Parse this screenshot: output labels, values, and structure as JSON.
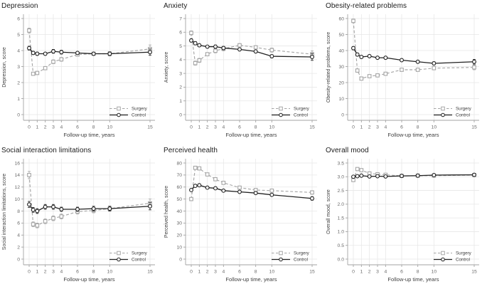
{
  "page": {
    "background": "#ffffff"
  },
  "colors": {
    "surgery": "#a6a6a6",
    "control": "#212121",
    "grid": "#e7e7e7",
    "axis": "#a3a3a3",
    "tick_text": "#6b6b6b",
    "axis_label_text": "#3f3f3f",
    "legend_text": "#3d3d3d",
    "title_text": "#1b1b1b",
    "marker_fill": "#ffffff"
  },
  "legend": {
    "items": [
      {
        "label": "Surgery"
      },
      {
        "label": "Control"
      }
    ]
  },
  "chart_data": [
    {
      "type": "line",
      "title": "Depression",
      "ylabel": "Depression, score",
      "xlabel": "Follow-up time, years",
      "x": [
        0,
        0.5,
        1,
        2,
        3,
        4,
        6,
        8,
        10,
        15
      ],
      "xticks": [
        0,
        1,
        2,
        3,
        4,
        6,
        8,
        10,
        15
      ],
      "xlim": [
        0,
        15
      ],
      "ylim": [
        0,
        6
      ],
      "yticks": [
        0,
        1,
        2,
        3,
        4,
        5,
        6
      ],
      "ydecimals": 0,
      "grid": true,
      "legend_position": "bottom-right",
      "series": [
        {
          "name": "Surgery",
          "style": "dashed",
          "marker": "square",
          "color_key": "surgery",
          "values": [
            5.25,
            2.55,
            2.6,
            2.9,
            3.3,
            3.45,
            3.75,
            3.8,
            3.8,
            4.1
          ],
          "err": [
            0.15,
            0.1,
            0.1,
            0.1,
            0.12,
            0.12,
            0.1,
            0.1,
            0.12,
            0.25
          ]
        },
        {
          "name": "Control",
          "style": "solid",
          "marker": "circle",
          "color_key": "control",
          "values": [
            4.15,
            3.85,
            3.8,
            3.8,
            3.95,
            3.9,
            3.85,
            3.8,
            3.8,
            3.9
          ],
          "err": [
            0.12,
            0.1,
            0.1,
            0.08,
            0.12,
            0.12,
            0.08,
            0.08,
            0.12,
            0.2
          ]
        }
      ]
    },
    {
      "type": "line",
      "title": "Anxiety",
      "ylabel": "Anxiety, score",
      "xlabel": "Follow-up time, years",
      "x": [
        0,
        0.5,
        1,
        2,
        3,
        4,
        6,
        8,
        10,
        15
      ],
      "xticks": [
        0,
        1,
        2,
        3,
        4,
        6,
        8,
        10,
        15
      ],
      "xlim": [
        0,
        15
      ],
      "ylim": [
        0,
        7
      ],
      "yticks": [
        0,
        1,
        2,
        3,
        4,
        5,
        6,
        7
      ],
      "ydecimals": 0,
      "grid": true,
      "legend_position": "bottom-right",
      "series": [
        {
          "name": "Surgery",
          "style": "dashed",
          "marker": "square",
          "color_key": "surgery",
          "values": [
            5.95,
            3.75,
            3.95,
            4.4,
            4.65,
            4.8,
            5.05,
            4.9,
            4.7,
            4.4
          ],
          "err": [
            0.15,
            0.15,
            0.15,
            0.12,
            0.15,
            0.15,
            0.12,
            0.12,
            0.15,
            0.25
          ]
        },
        {
          "name": "Control",
          "style": "solid",
          "marker": "circle",
          "color_key": "control",
          "values": [
            5.4,
            5.2,
            5.05,
            4.95,
            4.95,
            4.85,
            4.75,
            4.6,
            4.25,
            4.2
          ],
          "err": [
            0.12,
            0.12,
            0.1,
            0.1,
            0.12,
            0.12,
            0.1,
            0.1,
            0.12,
            0.25
          ]
        }
      ]
    },
    {
      "type": "line",
      "title": "Obesity-related problems",
      "ylabel": "Obesity-related problems, score",
      "xlabel": "Follow-up time, years",
      "x": [
        0,
        0.5,
        1,
        2,
        3,
        4,
        6,
        8,
        10,
        15
      ],
      "xticks": [
        0,
        1,
        2,
        3,
        4,
        6,
        8,
        10,
        15
      ],
      "xlim": [
        0,
        15
      ],
      "ylim": [
        0,
        60
      ],
      "yticks": [
        0,
        10,
        20,
        30,
        40,
        50,
        60
      ],
      "ydecimals": 0,
      "grid": true,
      "legend_position": "bottom-right",
      "series": [
        {
          "name": "Surgery",
          "style": "dashed",
          "marker": "square",
          "color_key": "surgery",
          "values": [
            58.5,
            27.5,
            22.5,
            24,
            24.5,
            25.5,
            28,
            28,
            29,
            29.5
          ],
          "err": [
            1.2,
            1,
            0.8,
            0.8,
            0.8,
            0.8,
            0.8,
            0.8,
            1,
            1.5
          ]
        },
        {
          "name": "Control",
          "style": "solid",
          "marker": "circle",
          "color_key": "control",
          "values": [
            41.5,
            37.5,
            36,
            36.5,
            35.5,
            35.5,
            34,
            33,
            32,
            33
          ],
          "err": [
            1,
            0.9,
            0.8,
            0.8,
            0.8,
            0.8,
            0.8,
            0.8,
            1,
            1.5
          ]
        }
      ]
    },
    {
      "type": "line",
      "title": "Social interaction limitations",
      "ylabel": "Social interaction limitations, score",
      "xlabel": "Follow-up time, years",
      "x": [
        0,
        0.5,
        1,
        2,
        3,
        4,
        6,
        8,
        10,
        15
      ],
      "xticks": [
        0,
        1,
        2,
        3,
        4,
        6,
        8,
        10,
        15
      ],
      "xlim": [
        0,
        15
      ],
      "ylim": [
        0,
        16
      ],
      "yticks": [
        0,
        2,
        4,
        6,
        8,
        10,
        12,
        14,
        16
      ],
      "ydecimals": 0,
      "grid": true,
      "legend_position": "bottom-right",
      "series": [
        {
          "name": "Surgery",
          "style": "dashed",
          "marker": "square",
          "color_key": "surgery",
          "values": [
            14,
            5.8,
            5.6,
            6.3,
            6.8,
            7.1,
            7.9,
            8.1,
            8.4,
            9.3
          ],
          "err": [
            0.6,
            0.4,
            0.4,
            0.4,
            0.4,
            0.4,
            0.4,
            0.4,
            0.4,
            0.7
          ]
        },
        {
          "name": "Control",
          "style": "solid",
          "marker": "circle",
          "color_key": "control",
          "values": [
            9.1,
            8.2,
            8.0,
            8.7,
            8.7,
            8.3,
            8.3,
            8.4,
            8.4,
            8.8
          ],
          "err": [
            0.5,
            0.4,
            0.4,
            0.4,
            0.4,
            0.35,
            0.35,
            0.4,
            0.4,
            0.6
          ]
        }
      ]
    },
    {
      "type": "line",
      "title": "Perceived health",
      "ylabel": "Perceived health, score",
      "xlabel": "Follow-up time, years",
      "x": [
        0,
        0.5,
        1,
        2,
        3,
        4,
        6,
        8,
        10,
        15
      ],
      "xticks": [
        0,
        1,
        2,
        3,
        4,
        6,
        8,
        10,
        15
      ],
      "xlim": [
        0,
        15
      ],
      "ylim": [
        0,
        80
      ],
      "yticks": [
        0,
        10,
        20,
        30,
        40,
        50,
        60,
        70,
        80
      ],
      "ydecimals": 0,
      "grid": true,
      "legend_position": "bottom-right",
      "series": [
        {
          "name": "Surgery",
          "style": "dashed",
          "marker": "square",
          "color_key": "surgery",
          "values": [
            50,
            76,
            75.5,
            70.5,
            66.5,
            63.5,
            59.5,
            57.5,
            57,
            55.5
          ],
          "err": [
            1.2,
            1,
            1,
            1,
            1,
            1,
            1,
            1,
            1,
            1.5
          ]
        },
        {
          "name": "Control",
          "style": "solid",
          "marker": "circle",
          "color_key": "control",
          "values": [
            57.5,
            61,
            61.5,
            59.5,
            59,
            57,
            56,
            55,
            53.5,
            50.5
          ],
          "err": [
            1,
            1,
            1,
            1,
            1,
            1,
            1,
            1,
            1,
            1.5
          ]
        }
      ]
    },
    {
      "type": "line",
      "title": "Overall mood",
      "ylabel": "Overall mood, score",
      "xlabel": "Follow-up time, years",
      "x": [
        0,
        0.5,
        1,
        2,
        3,
        4,
        6,
        8,
        10,
        15
      ],
      "xticks": [
        0,
        1,
        2,
        3,
        4,
        6,
        8,
        10,
        15
      ],
      "xlim": [
        0,
        15
      ],
      "ylim": [
        0,
        3.5
      ],
      "yticks": [
        0,
        0.5,
        1,
        1.5,
        2,
        2.5,
        3,
        3.5
      ],
      "ydecimals": 1,
      "grid": true,
      "legend_position": "bottom-right",
      "series": [
        {
          "name": "Surgery",
          "style": "dashed",
          "marker": "square",
          "color_key": "surgery",
          "values": [
            2.88,
            3.28,
            3.24,
            3.12,
            3.09,
            3.07,
            3.03,
            3.04,
            3.04,
            3.06
          ],
          "err": [
            0.05,
            0.04,
            0.04,
            0.04,
            0.04,
            0.04,
            0.03,
            0.03,
            0.04,
            0.06
          ]
        },
        {
          "name": "Control",
          "style": "solid",
          "marker": "circle",
          "color_key": "control",
          "values": [
            3.0,
            3.02,
            3.04,
            3.01,
            3.02,
            3.01,
            3.03,
            3.04,
            3.06,
            3.07
          ],
          "err": [
            0.04,
            0.03,
            0.03,
            0.03,
            0.03,
            0.03,
            0.03,
            0.03,
            0.04,
            0.05
          ]
        }
      ]
    }
  ]
}
